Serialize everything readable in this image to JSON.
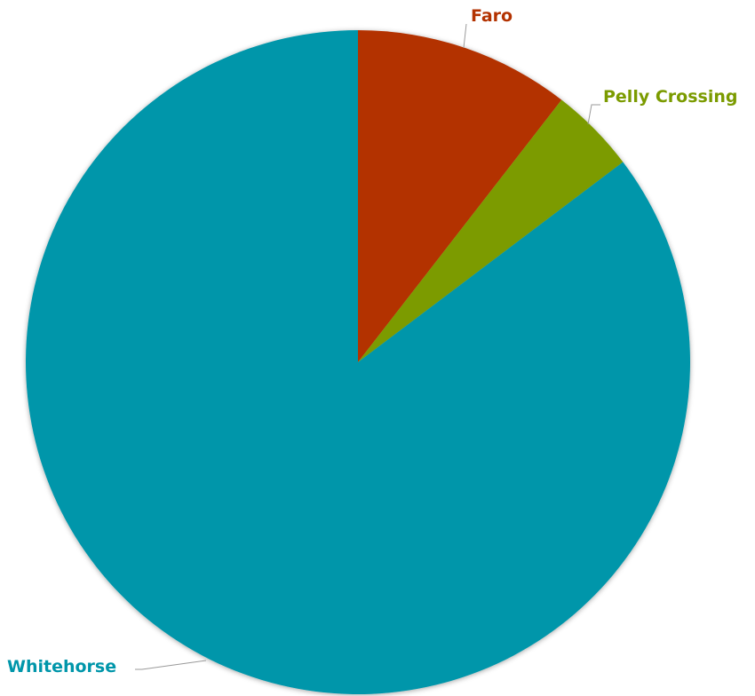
{
  "chart_data": {
    "type": "pie",
    "title": "",
    "start_angle_deg": 0,
    "direction": "clockwise",
    "slices": [
      {
        "label": "Faro",
        "value": 10.5,
        "color": "#b33200"
      },
      {
        "label": "Pelly Crossing",
        "value": 4.2,
        "color": "#7b9b00"
      },
      {
        "label": "Whitehorse",
        "value": 85.3,
        "color": "#0096aa"
      }
    ],
    "legend": "none",
    "labels": "outside-with-leader-lines"
  }
}
